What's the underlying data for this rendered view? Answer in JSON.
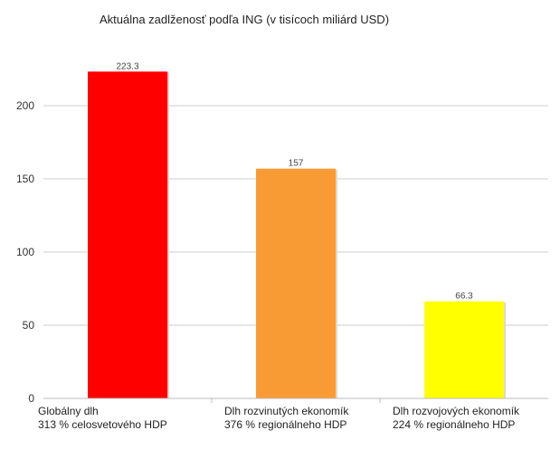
{
  "chart_data": {
    "type": "bar",
    "title": "Aktuálna zadlženosť podľa ING (v tisícoch miliárd USD)",
    "xlabel": "",
    "ylabel": "",
    "ylim": [
      0,
      250
    ],
    "yticks": [
      "0",
      "50",
      "100",
      "150",
      "200"
    ],
    "grid": true,
    "categories": [
      {
        "line1": "Globálny dlh",
        "line2": "313 % celosvetového HDP"
      },
      {
        "line1": "Dlh rozvinutých ekonomík",
        "line2": "376 % regionálneho HDP"
      },
      {
        "line1": "Dlh rozvojových ekonomík",
        "line2": "224 % regionálneho HDP"
      }
    ],
    "values": [
      223.3,
      157,
      66.3
    ],
    "value_labels": [
      "223.3",
      "157",
      "66.3"
    ],
    "colors": [
      "#ff0000",
      "#f99b35",
      "#ffff00"
    ]
  }
}
